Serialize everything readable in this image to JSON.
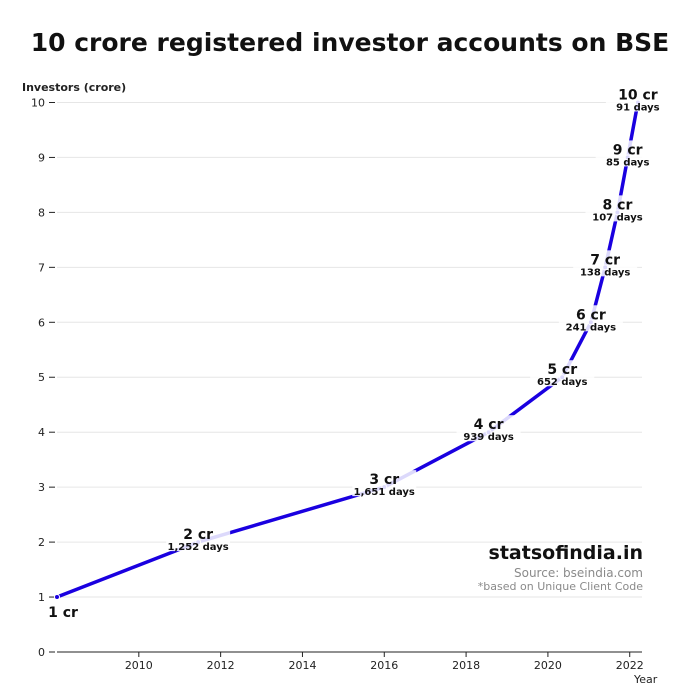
{
  "chart_data": {
    "type": "line",
    "title": "10 crore registered investor accounts on BSE",
    "ylabel": "Investors (crore)",
    "xlabel": "Year",
    "xlim": [
      2008.0,
      2022.3
    ],
    "ylim": [
      0,
      10.3
    ],
    "x_ticks": [
      2010,
      2012,
      2014,
      2016,
      2018,
      2020,
      2022
    ],
    "y_ticks": [
      0,
      1,
      2,
      3,
      4,
      5,
      6,
      7,
      8,
      9,
      10
    ],
    "grid": "horizontal",
    "line_color": "#1a00e0",
    "series": [
      {
        "x": [
          2008.0,
          2011.45,
          2016.0,
          2018.55,
          2020.35,
          2021.05,
          2021.4,
          2021.7,
          2021.95,
          2022.2
        ],
        "values": [
          1,
          2,
          3,
          4,
          5,
          6,
          7,
          8,
          9,
          10
        ]
      }
    ],
    "annotations": [
      {
        "label": "1 cr",
        "days": ""
      },
      {
        "label": "2 cr",
        "days": "1,252 days"
      },
      {
        "label": "3 cr",
        "days": "1,651 days"
      },
      {
        "label": "4 cr",
        "days": "939 days"
      },
      {
        "label": "5 cr",
        "days": "652 days"
      },
      {
        "label": "6 cr",
        "days": "241 days"
      },
      {
        "label": "7 cr",
        "days": "138 days"
      },
      {
        "label": "8 cr",
        "days": "107 days"
      },
      {
        "label": "9 cr",
        "days": "85 days"
      },
      {
        "label": "10 cr",
        "days": "91 days"
      }
    ]
  },
  "branding": {
    "site": "statsofindia.in",
    "source": "Source: bseindia.com",
    "note": "*based on Unique Client Code"
  }
}
